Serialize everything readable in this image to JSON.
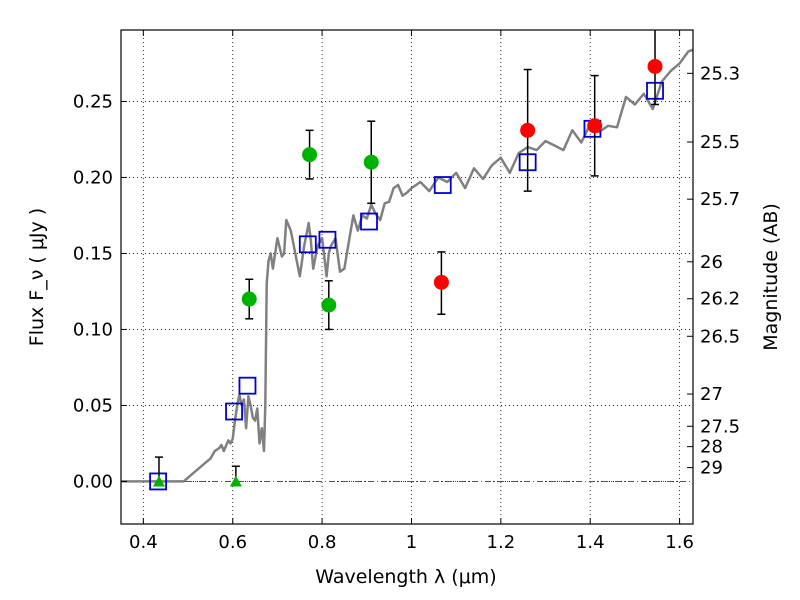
{
  "chart_data": {
    "type": "scatter",
    "xlabel": "Wavelength  λ (μm)",
    "ylabel": "Flux  F_ν  ( μJy )",
    "ylabel_right": "Magnitude (AB)",
    "xlim": [
      0.35,
      1.63
    ],
    "ylim": [
      -0.028,
      0.297
    ],
    "grid": true,
    "x_ticks": [
      {
        "value": 0.4,
        "label": "0.4"
      },
      {
        "value": 0.6,
        "label": "0.6"
      },
      {
        "value": 0.8,
        "label": "0.8"
      },
      {
        "value": 1.0,
        "label": "1"
      },
      {
        "value": 1.2,
        "label": "1.2"
      },
      {
        "value": 1.4,
        "label": "1.4"
      },
      {
        "value": 1.6,
        "label": "1.6"
      }
    ],
    "y_ticks": [
      {
        "value": 0.0,
        "label": "0.00"
      },
      {
        "value": 0.05,
        "label": "0.05"
      },
      {
        "value": 0.1,
        "label": "0.10"
      },
      {
        "value": 0.15,
        "label": "0.15"
      },
      {
        "value": 0.2,
        "label": "0.20"
      },
      {
        "value": 0.25,
        "label": "0.25"
      }
    ],
    "mag_ticks": [
      {
        "value": 0.2685,
        "label": "25.3"
      },
      {
        "value": 0.2233,
        "label": "25.5"
      },
      {
        "value": 0.1857,
        "label": "25.7"
      },
      {
        "value": 0.1445,
        "label": "26"
      },
      {
        "value": 0.1202,
        "label": "26.2"
      },
      {
        "value": 0.0955,
        "label": "26.5"
      },
      {
        "value": 0.0575,
        "label": "27"
      },
      {
        "value": 0.0363,
        "label": "27.5"
      },
      {
        "value": 0.0229,
        "label": "28"
      },
      {
        "value": 0.0091,
        "label": "29"
      }
    ],
    "series": [
      {
        "kind": "line",
        "color": "#808080",
        "x": [
          0.35,
          0.49,
          0.51,
          0.53,
          0.55,
          0.56,
          0.57,
          0.575,
          0.58,
          0.59,
          0.595,
          0.6,
          0.605,
          0.61,
          0.615,
          0.62,
          0.625,
          0.63,
          0.635,
          0.64,
          0.645,
          0.65,
          0.655,
          0.66,
          0.665,
          0.67,
          0.673,
          0.676,
          0.68,
          0.685,
          0.69,
          0.7,
          0.71,
          0.715,
          0.72,
          0.73,
          0.74,
          0.75,
          0.76,
          0.77,
          0.775,
          0.78,
          0.79,
          0.8,
          0.81,
          0.815,
          0.82,
          0.83,
          0.84,
          0.85,
          0.86,
          0.87,
          0.88,
          0.89,
          0.9,
          0.91,
          0.92,
          0.93,
          0.94,
          0.95,
          0.96,
          0.97,
          0.98,
          0.99,
          1.0,
          1.02,
          1.04,
          1.06,
          1.08,
          1.1,
          1.12,
          1.14,
          1.16,
          1.18,
          1.2,
          1.22,
          1.24,
          1.26,
          1.28,
          1.3,
          1.32,
          1.34,
          1.36,
          1.38,
          1.4,
          1.42,
          1.44,
          1.46,
          1.48,
          1.5,
          1.52,
          1.54,
          1.56,
          1.58,
          1.6,
          1.62,
          1.63
        ],
        "y": [
          0.0,
          0.0,
          0.005,
          0.01,
          0.015,
          0.02,
          0.022,
          0.024,
          0.02,
          0.027,
          0.025,
          0.028,
          0.04,
          0.05,
          0.057,
          0.05,
          0.054,
          0.035,
          0.056,
          0.05,
          0.042,
          0.04,
          0.048,
          0.025,
          0.035,
          0.02,
          0.05,
          0.13,
          0.145,
          0.15,
          0.14,
          0.16,
          0.148,
          0.15,
          0.172,
          0.165,
          0.15,
          0.135,
          0.155,
          0.17,
          0.158,
          0.14,
          0.155,
          0.16,
          0.135,
          0.15,
          0.155,
          0.16,
          0.138,
          0.14,
          0.158,
          0.175,
          0.165,
          0.175,
          0.173,
          0.182,
          0.176,
          0.172,
          0.183,
          0.184,
          0.193,
          0.195,
          0.188,
          0.19,
          0.193,
          0.197,
          0.191,
          0.2,
          0.197,
          0.203,
          0.193,
          0.206,
          0.199,
          0.208,
          0.213,
          0.203,
          0.216,
          0.22,
          0.218,
          0.224,
          0.221,
          0.218,
          0.231,
          0.223,
          0.235,
          0.23,
          0.234,
          0.233,
          0.253,
          0.248,
          0.255,
          0.245,
          0.263,
          0.27,
          0.275,
          0.283,
          0.284
        ]
      },
      {
        "kind": "square",
        "color": "#0000cc",
        "x": [
          0.433,
          0.603,
          0.633,
          0.768,
          0.812,
          0.905,
          1.07,
          1.26,
          1.405,
          1.545
        ],
        "y": [
          0.0,
          0.046,
          0.063,
          0.156,
          0.159,
          0.171,
          0.195,
          0.21,
          0.232,
          0.257
        ]
      },
      {
        "kind": "circle",
        "color": "#00b200",
        "x": [
          0.637,
          0.772,
          0.815,
          0.91
        ],
        "y": [
          0.12,
          0.215,
          0.116,
          0.21
        ],
        "err": [
          0.013,
          0.016,
          0.016,
          0.027
        ]
      },
      {
        "kind": "circle",
        "color": "#ff0000",
        "x": [
          1.067,
          1.26,
          1.41,
          1.545
        ],
        "y": [
          0.131,
          0.231,
          0.234,
          0.273
        ],
        "err_low": [
          0.021,
          0.04,
          0.033,
          0.025
        ],
        "err_high": [
          0.02,
          0.04,
          0.033,
          0.025
        ]
      },
      {
        "kind": "triangle",
        "color": "#00b200",
        "x": [
          0.435,
          0.607
        ],
        "y": [
          0.0,
          0.0
        ],
        "err_high": [
          0.016,
          0.01
        ]
      }
    ]
  }
}
